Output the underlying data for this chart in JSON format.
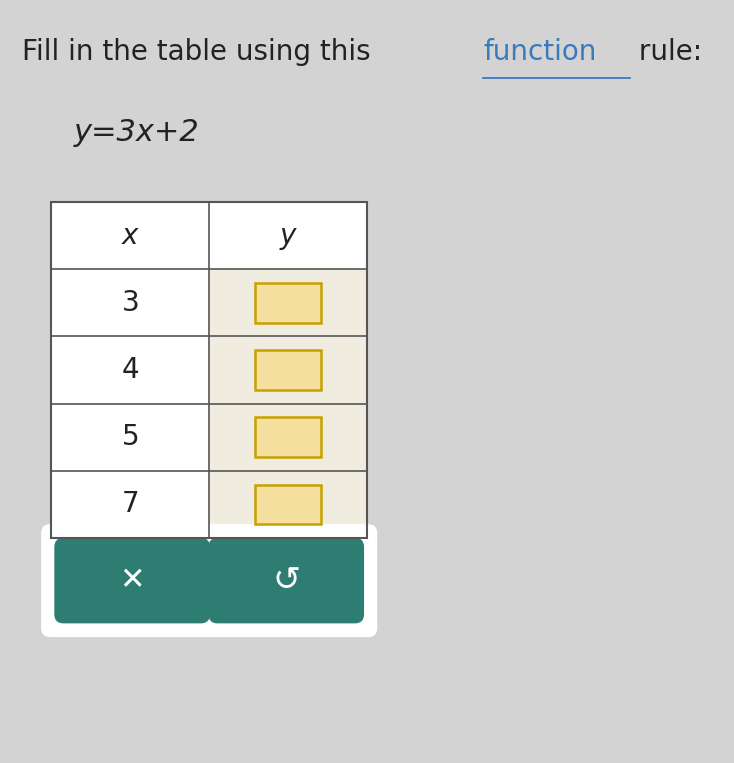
{
  "background_color": "#d3d3d3",
  "title_text1": "Fill in the table using this ",
  "title_link": "function",
  "title_text2": " rule:",
  "equation": "y=3x+2",
  "table_x_values": [
    "x",
    "3",
    "4",
    "5",
    "7"
  ],
  "table_y_values": [
    "y",
    "",
    "",
    "",
    ""
  ],
  "input_box_color": "#f5e0a0",
  "input_box_border": "#c8a000",
  "button_color": "#2e7d72",
  "button_text_color": "#ffffff",
  "title_font_size": 20,
  "equation_font_size": 22,
  "table_font_size": 20,
  "text_color": "#222222",
  "equation_color": "#222222",
  "title_color": "#222222",
  "link_color": "#3a7abf"
}
